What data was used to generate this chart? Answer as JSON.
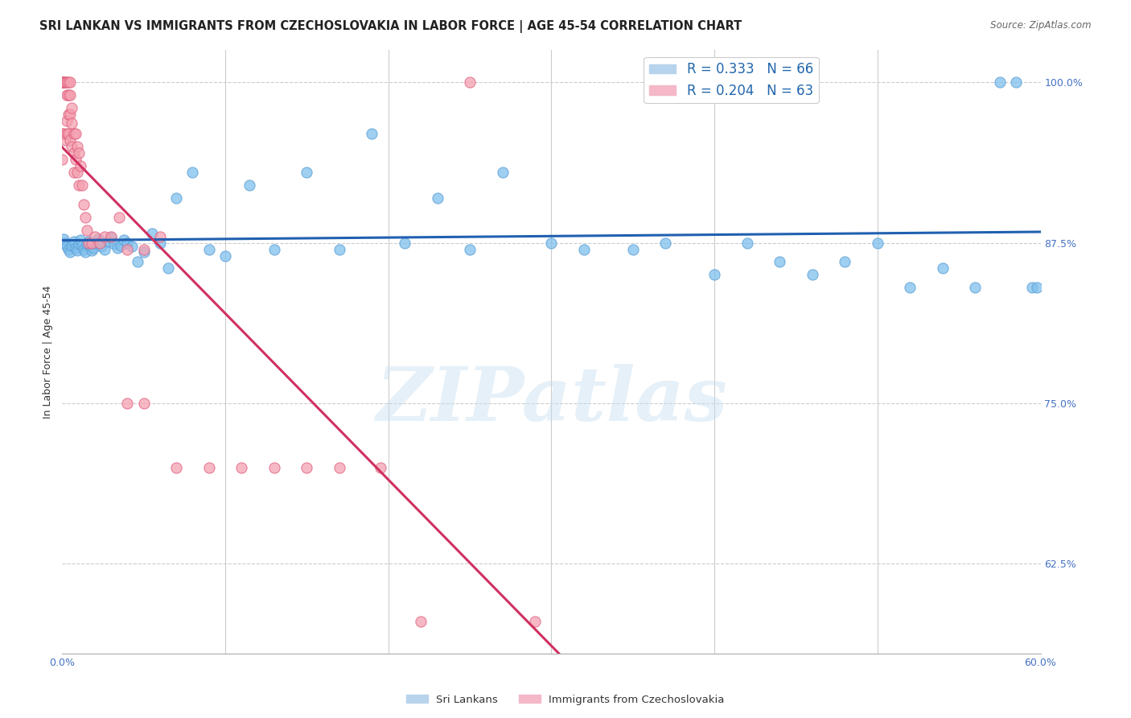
{
  "title": "SRI LANKAN VS IMMIGRANTS FROM CZECHOSLOVAKIA IN LABOR FORCE | AGE 45-54 CORRELATION CHART",
  "source": "Source: ZipAtlas.com",
  "ylabel": "In Labor Force | Age 45-54",
  "xlim": [
    0.0,
    0.6
  ],
  "ylim": [
    0.555,
    1.025
  ],
  "blue_color": "#7fbfed",
  "pink_color": "#f4a0b0",
  "blue_edge": "#5a9fd4",
  "pink_edge": "#e06080",
  "blue_R": 0.333,
  "blue_N": 66,
  "pink_R": 0.204,
  "pink_N": 63,
  "blue_line_color": "#2060b0",
  "pink_line_color": "#d03060",
  "watermark": "ZIPatlas",
  "background_color": "#ffffff",
  "grid_color": "#cccccc",
  "axis_color": "#4472c4",
  "title_color": "#222222",
  "title_fontsize": 10.5,
  "label_fontsize": 9,
  "tick_fontsize": 9,
  "blue_scatter_x": [
    0.001,
    0.002,
    0.003,
    0.004,
    0.005,
    0.006,
    0.007,
    0.008,
    0.009,
    0.01,
    0.011,
    0.012,
    0.013,
    0.014,
    0.015,
    0.016,
    0.017,
    0.018,
    0.019,
    0.02,
    0.022,
    0.024,
    0.026,
    0.028,
    0.03,
    0.032,
    0.034,
    0.036,
    0.038,
    0.04,
    0.043,
    0.046,
    0.05,
    0.055,
    0.06,
    0.065,
    0.07,
    0.08,
    0.09,
    0.1,
    0.115,
    0.13,
    0.15,
    0.17,
    0.19,
    0.21,
    0.23,
    0.25,
    0.27,
    0.3,
    0.32,
    0.35,
    0.37,
    0.4,
    0.42,
    0.44,
    0.46,
    0.48,
    0.5,
    0.52,
    0.54,
    0.56,
    0.575,
    0.585,
    0.595,
    0.598
  ],
  "blue_scatter_y": [
    0.878,
    0.875,
    0.872,
    0.87,
    0.868,
    0.873,
    0.876,
    0.871,
    0.869,
    0.874,
    0.877,
    0.873,
    0.87,
    0.868,
    0.874,
    0.876,
    0.872,
    0.869,
    0.871,
    0.875,
    0.878,
    0.872,
    0.87,
    0.876,
    0.879,
    0.874,
    0.871,
    0.873,
    0.877,
    0.875,
    0.872,
    0.86,
    0.868,
    0.882,
    0.875,
    0.855,
    0.91,
    0.93,
    0.87,
    0.865,
    0.92,
    0.87,
    0.93,
    0.87,
    0.96,
    0.875,
    0.91,
    0.87,
    0.93,
    0.875,
    0.87,
    0.87,
    0.875,
    0.85,
    0.875,
    0.86,
    0.85,
    0.86,
    0.875,
    0.84,
    0.855,
    0.84,
    1.0,
    1.0,
    0.84,
    0.84
  ],
  "pink_scatter_x": [
    0.0,
    0.0,
    0.0,
    0.0,
    0.0,
    0.0,
    0.001,
    0.001,
    0.001,
    0.002,
    0.002,
    0.002,
    0.003,
    0.003,
    0.003,
    0.003,
    0.004,
    0.004,
    0.004,
    0.004,
    0.005,
    0.005,
    0.005,
    0.005,
    0.006,
    0.006,
    0.006,
    0.007,
    0.007,
    0.007,
    0.008,
    0.008,
    0.009,
    0.009,
    0.01,
    0.01,
    0.011,
    0.012,
    0.013,
    0.014,
    0.015,
    0.016,
    0.018,
    0.02,
    0.023,
    0.026,
    0.03,
    0.035,
    0.04,
    0.05,
    0.06,
    0.07,
    0.09,
    0.11,
    0.13,
    0.15,
    0.17,
    0.195,
    0.22,
    0.25,
    0.29,
    0.04,
    0.05
  ],
  "pink_scatter_y": [
    1.0,
    1.0,
    1.0,
    1.0,
    0.96,
    0.94,
    1.0,
    1.0,
    0.96,
    1.0,
    1.0,
    0.955,
    1.0,
    0.99,
    0.97,
    0.96,
    1.0,
    0.99,
    0.975,
    0.96,
    1.0,
    0.99,
    0.975,
    0.955,
    0.98,
    0.968,
    0.95,
    0.96,
    0.945,
    0.93,
    0.96,
    0.94,
    0.95,
    0.93,
    0.945,
    0.92,
    0.935,
    0.92,
    0.905,
    0.895,
    0.885,
    0.875,
    0.875,
    0.88,
    0.875,
    0.88,
    0.88,
    0.895,
    0.87,
    0.87,
    0.88,
    0.7,
    0.7,
    0.7,
    0.7,
    0.7,
    0.7,
    0.7,
    0.58,
    1.0,
    0.58,
    0.75,
    0.75
  ]
}
